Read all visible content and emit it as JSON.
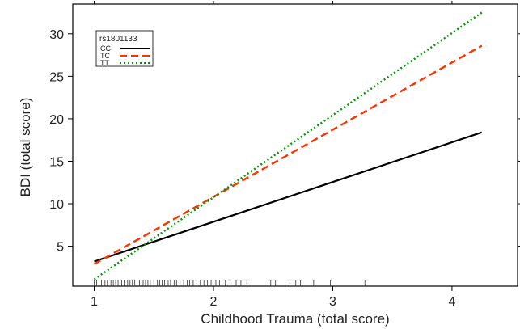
{
  "chart_data": {
    "type": "line",
    "title": "",
    "xlabel": "Childhood Trauma (total score)",
    "ylabel": "BDI (total score)",
    "xlim": [
      0.82,
      4.55
    ],
    "ylim": [
      0.3,
      33.5
    ],
    "x_ticks": [
      1,
      2,
      3,
      4
    ],
    "x_tick_labels": [
      "1",
      "2",
      "3",
      "4"
    ],
    "y_ticks": [
      5,
      10,
      15,
      20,
      25,
      30
    ],
    "y_tick_labels": [
      "5",
      "10",
      "15",
      "20",
      "25",
      "30"
    ],
    "grid": false,
    "legend": {
      "title": "rs1801133",
      "position": "top-left",
      "entries": [
        "CC",
        "TC",
        "TT"
      ]
    },
    "series": [
      {
        "name": "CC",
        "color": "#000000",
        "dash": "solid",
        "x": [
          1.0,
          4.25
        ],
        "y": [
          3.2,
          18.4
        ]
      },
      {
        "name": "TC",
        "color": "#ff3300",
        "dash": "dashed",
        "x": [
          1.0,
          4.25
        ],
        "y": [
          2.9,
          28.6
        ]
      },
      {
        "name": "TT",
        "color": "#009900",
        "dash": "dotted",
        "x": [
          1.0,
          4.25
        ],
        "y": [
          1.1,
          32.5
        ]
      }
    ],
    "rug_x": [
      1.0,
      1.02,
      1.04,
      1.06,
      1.09,
      1.11,
      1.14,
      1.16,
      1.18,
      1.2,
      1.23,
      1.25,
      1.28,
      1.3,
      1.32,
      1.34,
      1.36,
      1.38,
      1.41,
      1.43,
      1.45,
      1.47,
      1.5,
      1.53,
      1.55,
      1.57,
      1.59,
      1.62,
      1.64,
      1.67,
      1.69,
      1.72,
      1.75,
      1.78,
      1.8,
      1.83,
      1.86,
      1.89,
      1.92,
      1.95,
      1.98,
      2.02,
      2.05,
      2.1,
      2.14,
      2.19,
      2.23,
      2.28,
      2.48,
      2.52,
      2.64,
      2.69,
      2.73,
      2.84,
      2.98,
      3.27
    ]
  }
}
